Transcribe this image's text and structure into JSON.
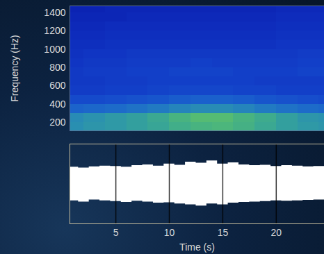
{
  "chart_data": [
    {
      "type": "heatmap",
      "y_label": "Frequency (Hz)",
      "x_bins": [
        0,
        2,
        4,
        6,
        8,
        10,
        12,
        14,
        16,
        18,
        20,
        22,
        24,
        26
      ],
      "y_bins": [
        100,
        200,
        300,
        400,
        500,
        600,
        700,
        800,
        900,
        1000,
        1100,
        1200,
        1300,
        1400,
        1500
      ],
      "cells": [
        [
          0.45,
          0.47,
          0.48,
          0.5,
          0.52,
          0.55,
          0.57,
          0.58,
          0.56,
          0.53,
          0.5,
          0.48,
          0.47
        ],
        [
          0.44,
          0.46,
          0.48,
          0.5,
          0.53,
          0.57,
          0.6,
          0.6,
          0.57,
          0.54,
          0.5,
          0.47,
          0.46
        ],
        [
          0.33,
          0.34,
          0.35,
          0.37,
          0.39,
          0.42,
          0.44,
          0.44,
          0.42,
          0.39,
          0.37,
          0.35,
          0.34
        ],
        [
          0.26,
          0.26,
          0.27,
          0.28,
          0.29,
          0.31,
          0.32,
          0.32,
          0.31,
          0.29,
          0.28,
          0.27,
          0.26
        ],
        [
          0.22,
          0.22,
          0.23,
          0.23,
          0.24,
          0.25,
          0.25,
          0.25,
          0.24,
          0.24,
          0.23,
          0.23,
          0.23
        ],
        [
          0.21,
          0.21,
          0.22,
          0.22,
          0.23,
          0.23,
          0.23,
          0.23,
          0.23,
          0.22,
          0.22,
          0.22,
          0.22
        ],
        [
          0.21,
          0.22,
          0.22,
          0.23,
          0.23,
          0.24,
          0.24,
          0.24,
          0.23,
          0.23,
          0.23,
          0.24,
          0.24
        ],
        [
          0.2,
          0.21,
          0.21,
          0.22,
          0.22,
          0.22,
          0.23,
          0.22,
          0.22,
          0.22,
          0.22,
          0.23,
          0.23
        ],
        [
          0.19,
          0.2,
          0.2,
          0.21,
          0.21,
          0.21,
          0.21,
          0.21,
          0.21,
          0.21,
          0.21,
          0.22,
          0.22
        ],
        [
          0.18,
          0.18,
          0.19,
          0.19,
          0.19,
          0.19,
          0.19,
          0.19,
          0.19,
          0.19,
          0.2,
          0.2,
          0.2
        ],
        [
          0.17,
          0.17,
          0.18,
          0.18,
          0.18,
          0.18,
          0.18,
          0.18,
          0.18,
          0.18,
          0.19,
          0.19,
          0.19
        ],
        [
          0.16,
          0.16,
          0.17,
          0.17,
          0.17,
          0.17,
          0.17,
          0.17,
          0.17,
          0.17,
          0.18,
          0.18,
          0.18
        ],
        [
          0.15,
          0.15,
          0.15,
          0.16,
          0.16,
          0.16,
          0.16,
          0.16,
          0.16,
          0.16,
          0.17,
          0.17,
          0.17
        ],
        [
          0.14,
          0.14,
          0.15,
          0.15,
          0.15,
          0.15,
          0.15,
          0.15,
          0.15,
          0.15,
          0.16,
          0.16,
          0.16
        ]
      ],
      "color": "jet",
      "zlim": [
        0,
        1
      ],
      "xlim": [
        0.7,
        24.5
      ],
      "ylim": [
        110,
        1475
      ],
      "yticks": [
        200,
        400,
        600,
        800,
        1000,
        1200,
        1400
      ],
      "tick_labels": "y"
    },
    {
      "type": "area",
      "x_label": "Time (s)",
      "x": [
        0,
        1,
        2,
        3,
        4,
        5,
        6,
        7,
        8,
        9,
        10,
        11,
        12,
        13,
        14,
        15,
        16,
        17,
        18,
        19,
        20,
        21,
        22,
        23,
        24,
        25
      ],
      "upper": [
        0.4,
        0.42,
        0.4,
        0.43,
        0.45,
        0.44,
        0.42,
        0.46,
        0.48,
        0.45,
        0.5,
        0.47,
        0.55,
        0.52,
        0.58,
        0.5,
        0.53,
        0.48,
        0.46,
        0.47,
        0.44,
        0.46,
        0.45,
        0.43,
        0.44,
        0.44
      ],
      "lower": [
        -0.38,
        -0.42,
        -0.45,
        -0.4,
        -0.42,
        -0.44,
        -0.46,
        -0.43,
        -0.45,
        -0.48,
        -0.47,
        -0.5,
        -0.52,
        -0.55,
        -0.5,
        -0.52,
        -0.48,
        -0.46,
        -0.45,
        -0.44,
        -0.42,
        -0.43,
        -0.42,
        -0.41,
        -0.4,
        -0.4
      ],
      "color": "#ffffff",
      "xlim": [
        0.7,
        24.5
      ],
      "ylim": [
        -1,
        1
      ],
      "xticks": [
        5,
        10,
        15,
        20
      ],
      "grid": true,
      "tick_labels": "x"
    }
  ]
}
